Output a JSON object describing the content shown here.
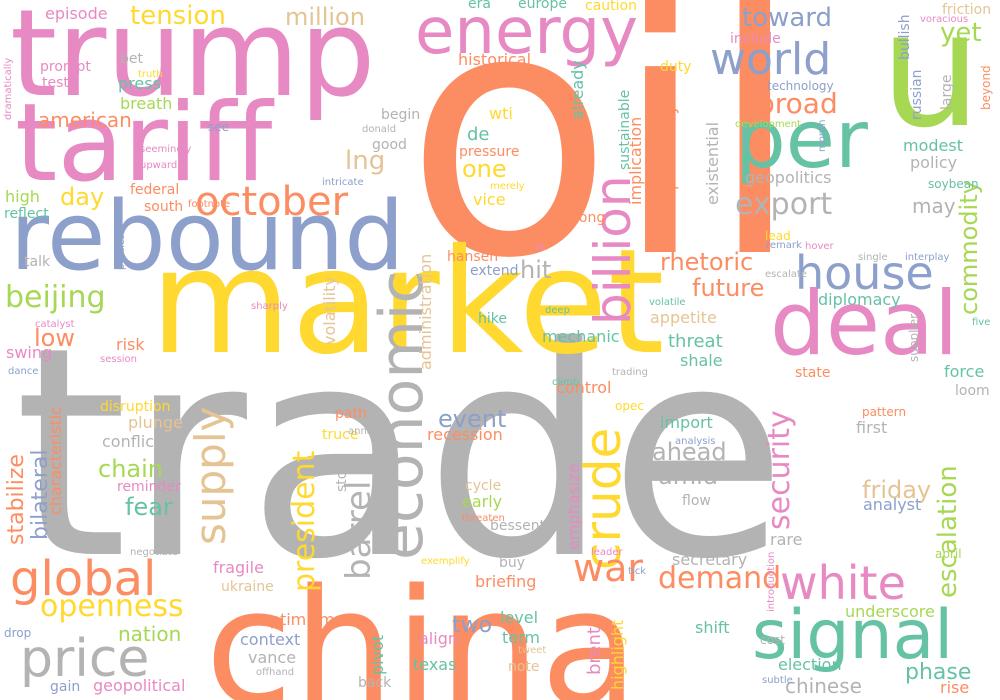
{
  "words": [
    {
      "text": "trade",
      "color": "#b3b3b3"
    },
    {
      "text": "oil",
      "color": "#fc8d62"
    },
    {
      "text": "market",
      "color": "#ffd92f"
    },
    {
      "text": "trump",
      "color": "#e78ac3"
    },
    {
      "text": "china",
      "color": "#fc8d62"
    },
    {
      "text": "rebound",
      "color": "#8da0cb"
    },
    {
      "text": "tariff",
      "color": "#e78ac3"
    },
    {
      "text": "u",
      "color": "#a6d854"
    },
    {
      "text": "energy",
      "color": "#e78ac3"
    },
    {
      "text": "deal",
      "color": "#e78ac3"
    },
    {
      "text": "per",
      "color": "#66c2a5"
    },
    {
      "text": "signal",
      "color": "#66c2a5"
    },
    {
      "text": "house",
      "color": "#8da0cb"
    },
    {
      "text": "white",
      "color": "#e78ac3"
    },
    {
      "text": "global",
      "color": "#fc8d62"
    },
    {
      "text": "price",
      "color": "#b3b3b3"
    },
    {
      "text": "world",
      "color": "#8da0cb"
    },
    {
      "text": "economic",
      "color": "#b3b3b3"
    },
    {
      "text": "crude",
      "color": "#ffd92f"
    },
    {
      "text": "billion",
      "color": "#e78ac3"
    },
    {
      "text": "october",
      "color": "#fc8d62"
    },
    {
      "text": "supply",
      "color": "#e5c494"
    },
    {
      "text": "war",
      "color": "#fc8d62"
    },
    {
      "text": "barrel",
      "color": "#b3b3b3"
    },
    {
      "text": "security",
      "color": "#e78ac3"
    },
    {
      "text": "president",
      "color": "#ffd92f"
    },
    {
      "text": "export",
      "color": "#b3b3b3"
    },
    {
      "text": "demand",
      "color": "#fc8d62"
    },
    {
      "text": "openness",
      "color": "#ffd92f"
    },
    {
      "text": "beijing",
      "color": "#a6d854"
    },
    {
      "text": "escalation",
      "color": "#a6d854"
    },
    {
      "text": "commodity",
      "color": "#a6d854"
    },
    {
      "text": "tension",
      "color": "#ffd92f"
    },
    {
      "text": "toward",
      "color": "#8da0cb"
    },
    {
      "text": "broad",
      "color": "#fc8d62"
    },
    {
      "text": "future",
      "color": "#fc8d62"
    },
    {
      "text": "rhetoric",
      "color": "#fc8d62"
    },
    {
      "text": "million",
      "color": "#e5c494"
    },
    {
      "text": "one",
      "color": "#ffd92f"
    },
    {
      "text": "lng",
      "color": "#e5c494"
    },
    {
      "text": "american",
      "color": "#fc8d62"
    },
    {
      "text": "yet",
      "color": "#a6d854"
    },
    {
      "text": "day",
      "color": "#ffd92f"
    },
    {
      "text": "low",
      "color": "#fc8d62"
    },
    {
      "text": "hit",
      "color": "#b3b3b3"
    },
    {
      "text": "event",
      "color": "#8da0cb"
    },
    {
      "text": "ahead",
      "color": "#b3b3b3"
    },
    {
      "text": "amid",
      "color": "#b3b3b3"
    },
    {
      "text": "chain",
      "color": "#a6d854"
    },
    {
      "text": "fear",
      "color": "#66c2a5"
    },
    {
      "text": "friday",
      "color": "#e5c494"
    },
    {
      "text": "stabilize",
      "color": "#fc8d62"
    },
    {
      "text": "bilateral",
      "color": "#8da0cb"
    },
    {
      "text": "nation",
      "color": "#a6d854"
    },
    {
      "text": "two",
      "color": "#8da0cb"
    },
    {
      "text": "phase",
      "color": "#66c2a5"
    },
    {
      "text": "chinese",
      "color": "#b3b3b3"
    },
    {
      "text": "may",
      "color": "#b3b3b3"
    },
    {
      "text": "geopolitics",
      "color": "#b3b3b3"
    },
    {
      "text": "policy",
      "color": "#b3b3b3"
    },
    {
      "text": "modest",
      "color": "#66c2a5"
    },
    {
      "text": "diplomacy",
      "color": "#66c2a5"
    },
    {
      "text": "threat",
      "color": "#66c2a5"
    },
    {
      "text": "appetite",
      "color": "#e5c494"
    },
    {
      "text": "mechanic",
      "color": "#66c2a5"
    },
    {
      "text": "shale",
      "color": "#66c2a5"
    },
    {
      "text": "control",
      "color": "#fc8d62"
    },
    {
      "text": "recession",
      "color": "#fc8d62"
    },
    {
      "text": "import",
      "color": "#66c2a5"
    },
    {
      "text": "analyst",
      "color": "#8da0cb"
    },
    {
      "text": "first",
      "color": "#b3b3b3"
    },
    {
      "text": "rare",
      "color": "#b3b3b3"
    },
    {
      "text": "secretary",
      "color": "#b3b3b3"
    },
    {
      "text": "briefing",
      "color": "#fc8d62"
    },
    {
      "text": "level",
      "color": "#66c2a5"
    },
    {
      "text": "term",
      "color": "#66c2a5"
    },
    {
      "text": "shift",
      "color": "#66c2a5"
    },
    {
      "text": "underscore",
      "color": "#a6d854"
    },
    {
      "text": "conflict",
      "color": "#b3b3b3"
    },
    {
      "text": "risk",
      "color": "#fc8d62"
    },
    {
      "text": "swing",
      "color": "#e78ac3"
    },
    {
      "text": "fragile",
      "color": "#e78ac3"
    },
    {
      "text": "context",
      "color": "#8da0cb"
    },
    {
      "text": "vance",
      "color": "#b3b3b3"
    },
    {
      "text": "geopolitical",
      "color": "#e78ac3"
    },
    {
      "text": "gain",
      "color": "#8da0cb"
    },
    {
      "text": "optimism",
      "color": "#fc8d62"
    },
    {
      "text": "texas",
      "color": "#66c2a5"
    },
    {
      "text": "align",
      "color": "#e78ac3"
    },
    {
      "text": "election",
      "color": "#66c2a5"
    },
    {
      "text": "rise",
      "color": "#fc8d62"
    },
    {
      "text": "force",
      "color": "#66c2a5"
    },
    {
      "text": "state",
      "color": "#fc8d62"
    },
    {
      "text": "episode",
      "color": "#e78ac3"
    },
    {
      "text": "prompt",
      "color": "#e78ac3"
    },
    {
      "text": "test",
      "color": "#e78ac3"
    },
    {
      "text": "bet",
      "color": "#b3b3b3"
    },
    {
      "text": "press",
      "color": "#66c2a5"
    },
    {
      "text": "breath",
      "color": "#a6d854"
    },
    {
      "text": "historical",
      "color": "#fc8d62"
    },
    {
      "text": "era",
      "color": "#66c2a5"
    },
    {
      "text": "europe",
      "color": "#66c2a5"
    },
    {
      "text": "caution",
      "color": "#ffd92f"
    },
    {
      "text": "include",
      "color": "#e78ac3"
    },
    {
      "text": "duty",
      "color": "#ffd92f"
    },
    {
      "text": "wti",
      "color": "#ffd92f"
    },
    {
      "text": "de",
      "color": "#66c2a5"
    },
    {
      "text": "pressure",
      "color": "#fc8d62"
    },
    {
      "text": "vice",
      "color": "#ffd92f"
    },
    {
      "text": "good",
      "color": "#b3b3b3"
    },
    {
      "text": "begin",
      "color": "#b3b3b3"
    },
    {
      "text": "high",
      "color": "#a6d854"
    },
    {
      "text": "federal",
      "color": "#fc8d62"
    },
    {
      "text": "south",
      "color": "#fc8d62"
    },
    {
      "text": "reflect",
      "color": "#66c2a5"
    },
    {
      "text": "talk",
      "color": "#b3b3b3"
    },
    {
      "text": "hansen",
      "color": "#fc8d62"
    },
    {
      "text": "extend",
      "color": "#8da0cb"
    },
    {
      "text": "hike",
      "color": "#66c2a5"
    },
    {
      "text": "path",
      "color": "#fc8d62"
    },
    {
      "text": "truce",
      "color": "#ffd92f"
    },
    {
      "text": "disruption",
      "color": "#ffd92f"
    },
    {
      "text": "plunge",
      "color": "#e5c494"
    },
    {
      "text": "reminder",
      "color": "#e78ac3"
    },
    {
      "text": "cycle",
      "color": "#e5c494"
    },
    {
      "text": "early",
      "color": "#a6d854"
    },
    {
      "text": "flow",
      "color": "#b3b3b3"
    },
    {
      "text": "buy",
      "color": "#b3b3b3"
    },
    {
      "text": "note",
      "color": "#e5c494"
    },
    {
      "text": "back",
      "color": "#b3b3b3"
    },
    {
      "text": "drop",
      "color": "#8da0cb"
    },
    {
      "text": "ukraine",
      "color": "#e5c494"
    },
    {
      "text": "bessent",
      "color": "#b3b3b3"
    },
    {
      "text": "stock",
      "color": "#b3b3b3"
    },
    {
      "text": "long",
      "color": "#fc8d62"
    },
    {
      "text": "lead",
      "color": "#ffd92f"
    },
    {
      "text": "large",
      "color": "#b3b3b3"
    },
    {
      "text": "supplier",
      "color": "#b3b3b3"
    },
    {
      "text": "loom",
      "color": "#b3b3b3"
    },
    {
      "text": "soybean",
      "color": "#66c2a5"
    },
    {
      "text": "cost",
      "color": "#b3b3b3"
    },
    {
      "text": "april",
      "color": "#a6d854"
    },
    {
      "text": "five",
      "color": "#66c2a5"
    },
    {
      "text": "friction",
      "color": "#e5c494"
    },
    {
      "text": "technology",
      "color": "#8da0cb"
    },
    {
      "text": "beyond",
      "color": "#fc8d62"
    },
    {
      "text": "pattern",
      "color": "#fc8d62"
    },
    {
      "text": "opec",
      "color": "#ffd92f"
    },
    {
      "text": "single",
      "color": "#b3b3b3"
    },
    {
      "text": "interplay",
      "color": "#8da0cb"
    },
    {
      "text": "volatile",
      "color": "#66c2a5"
    },
    {
      "text": "deep",
      "color": "#66c2a5"
    },
    {
      "text": "see",
      "color": "#8da0cb"
    },
    {
      "text": "catalyst",
      "color": "#e78ac3"
    },
    {
      "text": "dance",
      "color": "#8da0cb"
    },
    {
      "text": "session",
      "color": "#e78ac3"
    },
    {
      "text": "sharply",
      "color": "#e78ac3"
    },
    {
      "text": "trading",
      "color": "#b3b3b3"
    },
    {
      "text": "climb",
      "color": "#66c2a5"
    },
    {
      "text": "tick",
      "color": "#8da0cb"
    },
    {
      "text": "leader",
      "color": "#e78ac3"
    },
    {
      "text": "exemplify",
      "color": "#ffd92f"
    },
    {
      "text": "negotiate",
      "color": "#b3b3b3"
    },
    {
      "text": "threaten",
      "color": "#fc8d62"
    },
    {
      "text": "tweet",
      "color": "#e5c494"
    },
    {
      "text": "offhand",
      "color": "#b3b3b3"
    },
    {
      "text": "subtle",
      "color": "#8da0cb"
    },
    {
      "text": "introduction",
      "color": "#e78ac3"
    },
    {
      "text": "hover",
      "color": "#e78ac3"
    },
    {
      "text": "remark",
      "color": "#8da0cb"
    },
    {
      "text": "escalate",
      "color": "#b3b3b3"
    },
    {
      "text": "jd",
      "color": "#e78ac3"
    },
    {
      "text": "development",
      "color": "#a6d854"
    },
    {
      "text": "month",
      "color": "#8da0cb"
    },
    {
      "text": "seemingly",
      "color": "#e78ac3"
    },
    {
      "text": "upward",
      "color": "#e78ac3"
    },
    {
      "text": "truth",
      "color": "#ffd92f"
    },
    {
      "text": "donald",
      "color": "#b3b3b3"
    },
    {
      "text": "intricate",
      "color": "#8da0cb"
    },
    {
      "text": "merely",
      "color": "#ffd92f"
    },
    {
      "text": "footnote",
      "color": "#fc8d62"
    },
    {
      "text": "voracious",
      "color": "#e78ac3"
    },
    {
      "text": "analysis",
      "color": "#8da0cb"
    },
    {
      "text": "annals",
      "color": "#b3b3b3"
    },
    {
      "text": "dramatically",
      "color": "#e78ac3"
    },
    {
      "text": "politics",
      "color": "#8da0cb"
    },
    {
      "text": "administration",
      "color": "#e5c494"
    },
    {
      "text": "volatility",
      "color": "#e5c494"
    },
    {
      "text": "characteristic",
      "color": "#fc8d62"
    },
    {
      "text": "emphasize",
      "color": "#e78ac3"
    },
    {
      "text": "highlight",
      "color": "#ffd92f"
    },
    {
      "text": "pivot",
      "color": "#66c2a5"
    },
    {
      "text": "brent",
      "color": "#e78ac3"
    },
    {
      "text": "existential",
      "color": "#b3b3b3"
    },
    {
      "text": "implication",
      "color": "#fc8d62"
    },
    {
      "text": "potentially",
      "color": "#fc8d62"
    },
    {
      "text": "sustainable",
      "color": "#66c2a5"
    },
    {
      "text": "bullish",
      "color": "#8da0cb"
    },
    {
      "text": "russian",
      "color": "#8da0cb"
    },
    {
      "text": "already",
      "color": "#66c2a5"
    }
  ]
}
